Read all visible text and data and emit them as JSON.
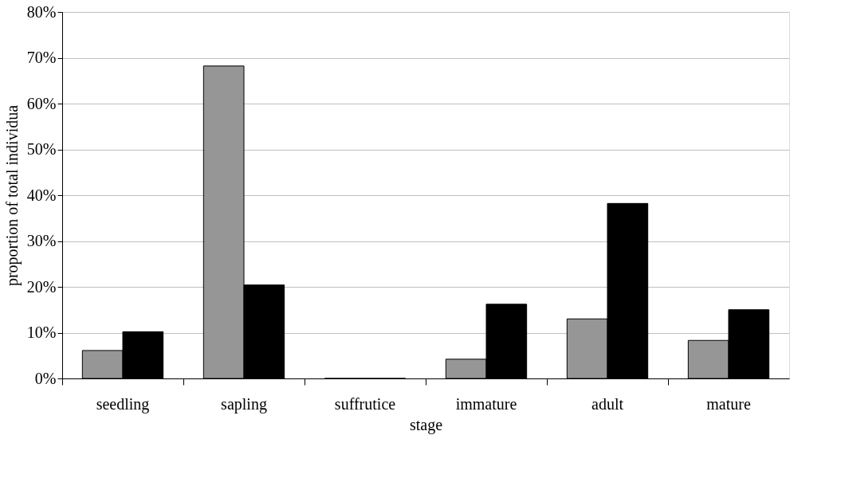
{
  "chart_data": {
    "type": "bar",
    "xlabel": "stage",
    "ylabel": "proportion of total individua",
    "categories": [
      "seedling",
      "sapling",
      "suffrutice",
      "immature",
      "adult",
      "mature"
    ],
    "series": [
      {
        "color": "#969696",
        "values": [
          6.1,
          68.2,
          0,
          4.2,
          13.0,
          8.3
        ]
      },
      {
        "color": "#000000",
        "values": [
          10.2,
          20.4,
          0,
          16.2,
          38.2,
          15.0
        ]
      }
    ],
    "ylim": [
      0,
      80
    ],
    "yticks": [
      {
        "value": 0,
        "label": "0%"
      },
      {
        "value": 10,
        "label": "10%"
      },
      {
        "value": 20,
        "label": "20%"
      },
      {
        "value": 30,
        "label": "30%"
      },
      {
        "value": 40,
        "label": "40%"
      },
      {
        "value": 50,
        "label": "50%"
      },
      {
        "value": 60,
        "label": "60%"
      },
      {
        "value": 70,
        "label": "70%"
      },
      {
        "value": 80,
        "label": "80%"
      }
    ],
    "grid": "y"
  }
}
